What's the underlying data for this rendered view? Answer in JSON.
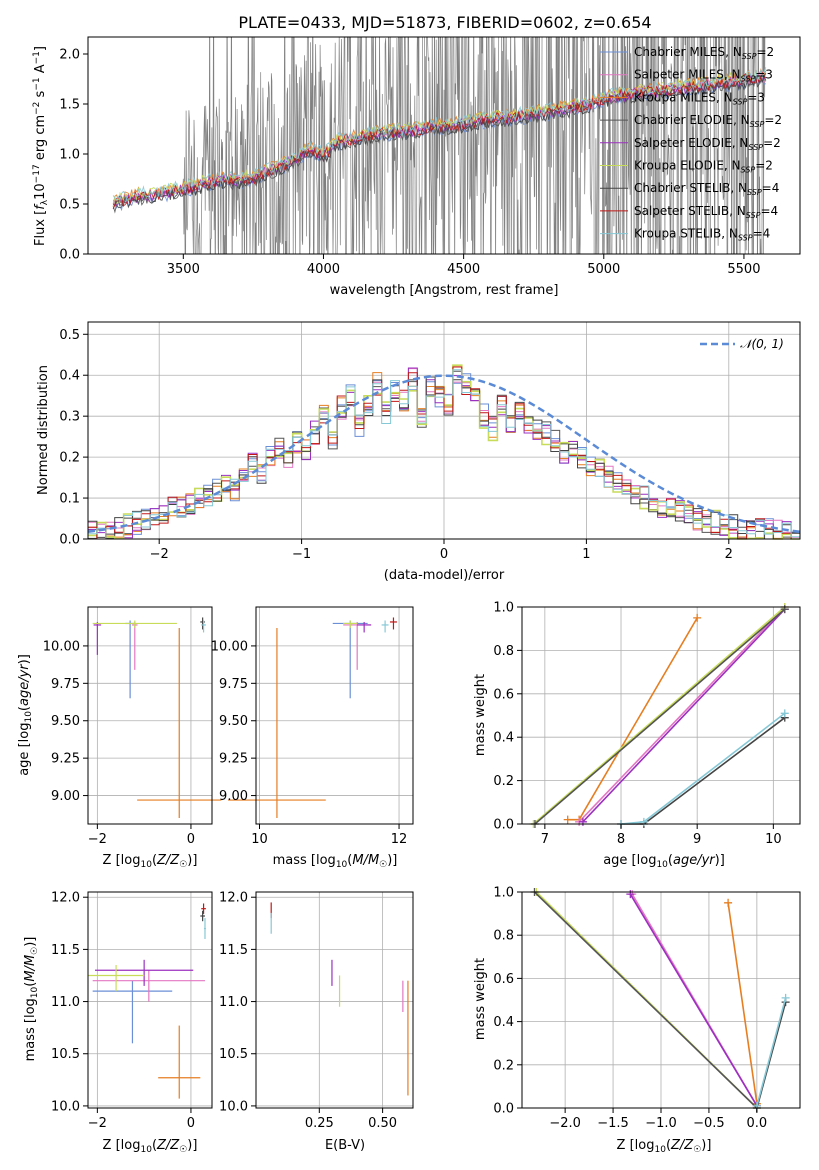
{
  "figure": {
    "title": "PLATE=0433, MJD=51873, FIBERID=0602, z=0.654"
  },
  "colors": {
    "chabrier_miles": "#6b8fd6",
    "salpeter_miles": "#e377c2",
    "kroupa_miles": "#e67e22",
    "chabrier_elodie": "#555555",
    "salpeter_elodie": "#9b30c0",
    "kroupa_elodie": "#c8dc5a",
    "chabrier_stelib": "#444444",
    "salpeter_stelib": "#c01818",
    "kroupa_stelib": "#86c8d6",
    "spectrum": "#808080",
    "gaussian": "#5b8bd6",
    "grid": "#b0b0b0"
  },
  "chart_data": [
    {
      "id": "spectrum",
      "type": "line",
      "xlabel": "wavelength [Angstrom, rest frame]",
      "ylabel": "Flux [f_λ 10^-17 erg cm^-2 s^-1 A^-1]",
      "xlim": [
        3160,
        5700
      ],
      "ylim": [
        0,
        2.17
      ],
      "xticks": [
        "3500",
        "4000",
        "4500",
        "5000",
        "5500"
      ],
      "yticks": [
        "0.0",
        "0.5",
        "1.0",
        "1.5",
        "2.0"
      ],
      "grid": false,
      "legend_position": "top-right",
      "legend": [
        {
          "name": "Chabrier MILES, N_SSP=2",
          "base": "Chabrier MILES, N",
          "sub": "SSP",
          "tail": "=2",
          "color_key": "chabrier_miles"
        },
        {
          "name": "Salpeter MILES, N_SSP=3",
          "base": "Salpeter MILES, N",
          "sub": "SSP",
          "tail": "=3",
          "color_key": "salpeter_miles"
        },
        {
          "name": "Kroupa MILES, N_SSP=3",
          "base": "Kroupa MILES, N",
          "sub": "SSP",
          "tail": "=3",
          "color_key": "kroupa_miles"
        },
        {
          "name": "Chabrier ELODIE, N_SSP=2",
          "base": "Chabrier ELODIE, N",
          "sub": "SSP",
          "tail": "=2",
          "color_key": "chabrier_elodie"
        },
        {
          "name": "Salpeter ELODIE, N_SSP=2",
          "base": "Salpeter ELODIE, N",
          "sub": "SSP",
          "tail": "=2",
          "color_key": "salpeter_elodie"
        },
        {
          "name": "Kroupa ELODIE, N_SSP=2",
          "base": "Kroupa ELODIE, N",
          "sub": "SSP",
          "tail": "=2",
          "color_key": "kroupa_elodie"
        },
        {
          "name": "Chabrier STELIB, N_SSP=4",
          "base": "Chabrier STELIB, N",
          "sub": "SSP",
          "tail": "=4",
          "color_key": "chabrier_stelib"
        },
        {
          "name": "Salpeter STELIB, N_SSP=4",
          "base": "Salpeter STELIB, N",
          "sub": "SSP",
          "tail": "=4",
          "color_key": "salpeter_stelib"
        },
        {
          "name": "Kroupa STELIB, N_SSP=4",
          "base": "Kroupa STELIB, N",
          "sub": "SSP",
          "tail": "=4",
          "color_key": "kroupa_stelib"
        }
      ],
      "observed_start": 3250,
      "observed_end": 5580,
      "noise_start": 3500,
      "model_curve": {
        "x": [
          3250,
          3300,
          3350,
          3400,
          3450,
          3500,
          3550,
          3600,
          3650,
          3700,
          3750,
          3800,
          3850,
          3900,
          3950,
          4000,
          4050,
          4100,
          4150,
          4200,
          4250,
          4300,
          4350,
          4400,
          4450,
          4500,
          4550,
          4600,
          4650,
          4700,
          4750,
          4800,
          4850,
          4900,
          4950,
          5000,
          5050,
          5100,
          5150,
          5200,
          5250,
          5300,
          5350,
          5400,
          5450,
          5500,
          5550,
          5580
        ],
        "y": [
          0.5,
          0.55,
          0.58,
          0.6,
          0.62,
          0.65,
          0.68,
          0.72,
          0.74,
          0.73,
          0.76,
          0.82,
          0.88,
          0.95,
          1.05,
          0.98,
          1.12,
          1.15,
          1.18,
          1.2,
          1.22,
          1.23,
          1.25,
          1.28,
          1.27,
          1.3,
          1.33,
          1.35,
          1.36,
          1.38,
          1.4,
          1.42,
          1.44,
          1.47,
          1.5,
          1.55,
          1.58,
          1.6,
          1.62,
          1.63,
          1.65,
          1.67,
          1.68,
          1.7,
          1.72,
          1.74,
          1.76,
          1.78
        ]
      }
    },
    {
      "id": "residual-histogram",
      "type": "bar",
      "xlabel": "(data-model)/error",
      "ylabel": "Normed distribution",
      "xlim": [
        -2.5,
        2.5
      ],
      "ylim": [
        0,
        0.53
      ],
      "xticks": [
        "−2",
        "−1",
        "0",
        "1",
        "2"
      ],
      "yticks": [
        "0.0",
        "0.1",
        "0.2",
        "0.3",
        "0.4",
        "0.5"
      ],
      "grid": true,
      "legend_position": "top-right",
      "gaussian_label": "𝒩(0, 1)",
      "gaussian": {
        "mean": 0,
        "sigma": 1
      },
      "bins_start": -2.5,
      "bin_width": 0.1,
      "histogram": [
        0.015,
        0.018,
        0.02,
        0.028,
        0.032,
        0.04,
        0.045,
        0.05,
        0.06,
        0.075,
        0.08,
        0.09,
        0.1,
        0.11,
        0.12,
        0.14,
        0.12,
        0.15,
        0.18,
        0.16,
        0.2,
        0.22,
        0.19,
        0.24,
        0.22,
        0.26,
        0.3,
        0.25,
        0.32,
        0.35,
        0.28,
        0.33,
        0.38,
        0.31,
        0.36,
        0.34,
        0.39,
        0.3,
        0.37,
        0.35,
        0.33,
        0.4,
        0.38,
        0.34,
        0.3,
        0.27,
        0.33,
        0.29,
        0.31,
        0.28,
        0.27,
        0.26,
        0.24,
        0.21,
        0.22,
        0.2,
        0.18,
        0.17,
        0.15,
        0.14,
        0.12,
        0.11,
        0.1,
        0.09,
        0.08,
        0.07,
        0.065,
        0.06,
        0.05,
        0.045,
        0.04,
        0.035,
        0.03,
        0.03,
        0.025,
        0.02,
        0.02,
        0.018,
        0.015,
        0.012
      ]
    },
    {
      "id": "age-vs-metallicity",
      "type": "scatter",
      "xlabel": "Z [log10(Z/Z⊙)]",
      "ylabel": "age [log10(age/yr)]",
      "xlim": [
        -2.2,
        0.45
      ],
      "ylim": [
        8.81,
        10.26
      ],
      "xticks": [
        "−2",
        "0"
      ],
      "xtick_values": [
        -2,
        0
      ],
      "yticks": [
        "9.00",
        "9.25",
        "9.50",
        "9.75",
        "10.00"
      ],
      "ytick_values": [
        9.0,
        9.25,
        9.5,
        9.75,
        10.0
      ],
      "grid": true,
      "points": [
        {
          "color_key": "chabrier_miles",
          "x": -1.3,
          "y": 10.15,
          "xerr": 0.1,
          "yerr": [
            0.5,
            0.02
          ]
        },
        {
          "color_key": "salpeter_miles",
          "x": -1.2,
          "y": 10.14,
          "xerr": 0.06,
          "yerr": [
            0.3,
            0.02
          ]
        },
        {
          "color_key": "kroupa_miles",
          "x": -0.25,
          "y": 8.97,
          "xerr": 0.9,
          "yerr": [
            0.12,
            1.15
          ]
        },
        {
          "color_key": "salpeter_elodie",
          "x": -2.0,
          "y": 10.14,
          "xerr": 0.08,
          "yerr": [
            0.2,
            0.02
          ]
        },
        {
          "color_key": "kroupa_elodie",
          "x": -1.2,
          "y": 10.15,
          "xerr": 0.9,
          "yerr": [
            0.03,
            0.02
          ]
        },
        {
          "color_key": "chabrier_stelib",
          "x": 0.25,
          "y": 10.16,
          "xerr": 0.05,
          "yerr": [
            0.05,
            0.03
          ]
        },
        {
          "color_key": "kroupa_stelib",
          "x": 0.27,
          "y": 10.14,
          "xerr": 0.05,
          "yerr": [
            0.05,
            0.03
          ]
        }
      ]
    },
    {
      "id": "age-vs-mass",
      "type": "scatter",
      "xlabel": "mass [log10(M/M⊙)]",
      "ylabel": "",
      "xlim": [
        9.95,
        12.2
      ],
      "ylim": [
        8.81,
        10.26
      ],
      "xticks": [
        "10",
        "12"
      ],
      "xtick_values": [
        10,
        12
      ],
      "yticks": [
        "9.00",
        "9.25",
        "9.50",
        "9.75",
        "10.00"
      ],
      "ytick_values": [
        9.0,
        9.25,
        9.5,
        9.75,
        10.0
      ],
      "grid": true,
      "points": [
        {
          "color_key": "chabrier_miles",
          "x": 11.3,
          "y": 10.15,
          "xerr": 0.25,
          "yerr": [
            0.5,
            0.02
          ]
        },
        {
          "color_key": "salpeter_miles",
          "x": 11.4,
          "y": 10.14,
          "xerr": 0.2,
          "yerr": [
            0.3,
            0.02
          ]
        },
        {
          "color_key": "kroupa_miles",
          "x": 10.25,
          "y": 8.97,
          "xerr": 0.7,
          "yerr": [
            0.12,
            1.15
          ]
        },
        {
          "color_key": "salpeter_elodie",
          "x": 11.5,
          "y": 10.14,
          "xerr": 0.1,
          "yerr": [
            0.05,
            0.02
          ]
        },
        {
          "color_key": "kroupa_elodie",
          "x": 11.3,
          "y": 10.15,
          "xerr": 0.1,
          "yerr": [
            0.03,
            0.02
          ]
        },
        {
          "color_key": "salpeter_stelib",
          "x": 11.92,
          "y": 10.16,
          "xerr": 0.05,
          "yerr": [
            0.05,
            0.03
          ]
        },
        {
          "color_key": "kroupa_stelib",
          "x": 11.8,
          "y": 10.14,
          "xerr": 0.05,
          "yerr": [
            0.05,
            0.03
          ]
        }
      ]
    },
    {
      "id": "mass-weight-vs-age",
      "type": "line",
      "xlabel": "age [log10(age/yr)]",
      "ylabel": "mass weight",
      "xlim": [
        6.7,
        10.35
      ],
      "ylim": [
        0,
        1
      ],
      "xticks": [
        "7",
        "8",
        "9",
        "10"
      ],
      "xtick_values": [
        7,
        8,
        9,
        10
      ],
      "yticks": [
        "0.0",
        "0.2",
        "0.4",
        "0.6",
        "0.8",
        "1.0"
      ],
      "ytick_values": [
        0,
        0.2,
        0.4,
        0.6,
        0.8,
        1.0
      ],
      "grid": true,
      "series": [
        {
          "color_key": "kroupa_miles",
          "x": [
            7.3,
            7.45,
            9.0
          ],
          "y": [
            0.02,
            0.02,
            0.95
          ]
        },
        {
          "color_key": "salpeter_miles",
          "x": [
            7.45,
            10.15
          ],
          "y": [
            0.01,
            1.0
          ]
        },
        {
          "color_key": "salpeter_elodie",
          "x": [
            7.5,
            10.15
          ],
          "y": [
            0.01,
            0.99
          ]
        },
        {
          "color_key": "kroupa_elodie",
          "x": [
            6.85,
            10.15
          ],
          "y": [
            0.0,
            1.0
          ]
        },
        {
          "color_key": "chabrier_elodie",
          "x": [
            6.87,
            10.15
          ],
          "y": [
            0.0,
            0.99
          ]
        },
        {
          "color_key": "chabrier_stelib",
          "x": [
            8.0,
            8.3,
            10.15
          ],
          "y": [
            0.0,
            0.0,
            0.49
          ]
        },
        {
          "color_key": "kroupa_stelib",
          "x": [
            8.0,
            8.3,
            10.15
          ],
          "y": [
            0.0,
            0.01,
            0.51
          ]
        }
      ]
    },
    {
      "id": "mass-vs-metallicity",
      "type": "scatter",
      "xlabel": "Z [log10(Z/Z⊙)]",
      "ylabel": "mass [log10(M/M⊙)]",
      "xlim": [
        -2.2,
        0.45
      ],
      "ylim": [
        9.98,
        12.05
      ],
      "xticks": [
        "−2",
        "0"
      ],
      "xtick_values": [
        -2,
        0
      ],
      "yticks": [
        "10.0",
        "10.5",
        "11.0",
        "11.5",
        "12.0"
      ],
      "ytick_values": [
        10.0,
        10.5,
        11.0,
        11.5,
        12.0
      ],
      "grid": true,
      "points": [
        {
          "color_key": "chabrier_miles",
          "x": -1.25,
          "y": 11.1,
          "xerr": 0.85,
          "yerr": [
            0.5,
            0.1
          ]
        },
        {
          "color_key": "salpeter_miles",
          "x": -0.9,
          "y": 11.2,
          "xerr": 1.2,
          "yerr": [
            0.2,
            0.1
          ]
        },
        {
          "color_key": "kroupa_miles",
          "x": -0.25,
          "y": 10.27,
          "xerr": 0.45,
          "yerr": [
            0.2,
            0.5
          ]
        },
        {
          "color_key": "salpeter_elodie",
          "x": -1.0,
          "y": 11.3,
          "xerr": 1.05,
          "yerr": [
            0.15,
            0.1
          ]
        },
        {
          "color_key": "kroupa_elodie",
          "x": -1.6,
          "y": 11.25,
          "xerr": 0.6,
          "yerr": [
            0.15,
            0.1
          ]
        },
        {
          "color_key": "salpeter_stelib",
          "x": 0.27,
          "y": 11.89,
          "xerr": 0.05,
          "yerr": [
            0.05,
            0.05
          ]
        },
        {
          "color_key": "chabrier_stelib",
          "x": 0.25,
          "y": 11.82,
          "xerr": 0.05,
          "yerr": [
            0.05,
            0.05
          ]
        },
        {
          "color_key": "kroupa_stelib",
          "x": 0.3,
          "y": 11.7,
          "xerr": 0.02,
          "yerr": [
            0.1,
            0.1
          ]
        }
      ]
    },
    {
      "id": "mass-vs-extinction",
      "type": "scatter",
      "xlabel": "E(B-V)",
      "ylabel": "",
      "xlim": [
        0.0,
        0.62
      ],
      "ylim": [
        9.98,
        12.05
      ],
      "xticks": [
        "0.25",
        "0.50"
      ],
      "xtick_values": [
        0.25,
        0.5
      ],
      "yticks": [
        "10.0",
        "10.5",
        "11.0",
        "11.5",
        "12.0"
      ],
      "ytick_values": [
        10.0,
        10.5,
        11.0,
        11.5,
        12.0
      ],
      "grid": true,
      "points": [
        {
          "color_key": "salpeter_elodie",
          "x": 0.3,
          "y": 11.3,
          "xerr": 0.0,
          "yerr": [
            0.15,
            0.1
          ]
        },
        {
          "color_key": "kroupa_elodie",
          "x": 0.33,
          "y": 11.15,
          "xerr": 0.0,
          "yerr": [
            0.2,
            0.1
          ]
        },
        {
          "color_key": "salpeter_miles",
          "x": 0.58,
          "y": 11.1,
          "xerr": 0.0,
          "yerr": [
            0.2,
            0.1
          ]
        },
        {
          "color_key": "kroupa_miles",
          "x": 0.6,
          "y": 10.6,
          "xerr": 0.0,
          "yerr": [
            0.5,
            0.6
          ]
        },
        {
          "color_key": "salpeter_stelib",
          "x": 0.06,
          "y": 11.85,
          "xerr": 0.0,
          "yerr": [
            0.05,
            0.1
          ]
        },
        {
          "color_key": "kroupa_stelib",
          "x": 0.06,
          "y": 11.75,
          "xerr": 0.0,
          "yerr": [
            0.1,
            0.1
          ]
        }
      ]
    },
    {
      "id": "mass-weight-vs-metallicity",
      "type": "line",
      "xlabel": "Z [log10(Z/Z⊙)]",
      "ylabel": "mass weight",
      "xlim": [
        -2.45,
        0.45
      ],
      "ylim": [
        0,
        1
      ],
      "xticks": [
        "−2.0",
        "−1.5",
        "−1.0",
        "−0.5",
        "0.0"
      ],
      "xtick_values": [
        -2.0,
        -1.5,
        -1.0,
        -0.5,
        0.0
      ],
      "yticks": [
        "0.0",
        "0.2",
        "0.4",
        "0.6",
        "0.8",
        "1.0"
      ],
      "ytick_values": [
        0,
        0.2,
        0.4,
        0.6,
        0.8,
        1.0
      ],
      "grid": true,
      "series": [
        {
          "color_key": "kroupa_miles",
          "x": [
            -0.3,
            0.0
          ],
          "y": [
            0.95,
            0.02
          ]
        },
        {
          "color_key": "salpeter_miles",
          "x": [
            -1.3,
            0.0
          ],
          "y": [
            0.99,
            0.01
          ]
        },
        {
          "color_key": "salpeter_elodie",
          "x": [
            -1.32,
            0.0
          ],
          "y": [
            0.99,
            0.01
          ]
        },
        {
          "color_key": "kroupa_elodie",
          "x": [
            -2.3,
            0.0
          ],
          "y": [
            1.0,
            0.0
          ]
        },
        {
          "color_key": "chabrier_elodie",
          "x": [
            -2.32,
            0.0
          ],
          "y": [
            1.0,
            0.0
          ]
        },
        {
          "color_key": "chabrier_stelib",
          "x": [
            0.0,
            0.3
          ],
          "y": [
            0.0,
            0.49
          ]
        },
        {
          "color_key": "kroupa_stelib",
          "x": [
            0.0,
            0.3
          ],
          "y": [
            0.01,
            0.51
          ]
        }
      ]
    }
  ]
}
